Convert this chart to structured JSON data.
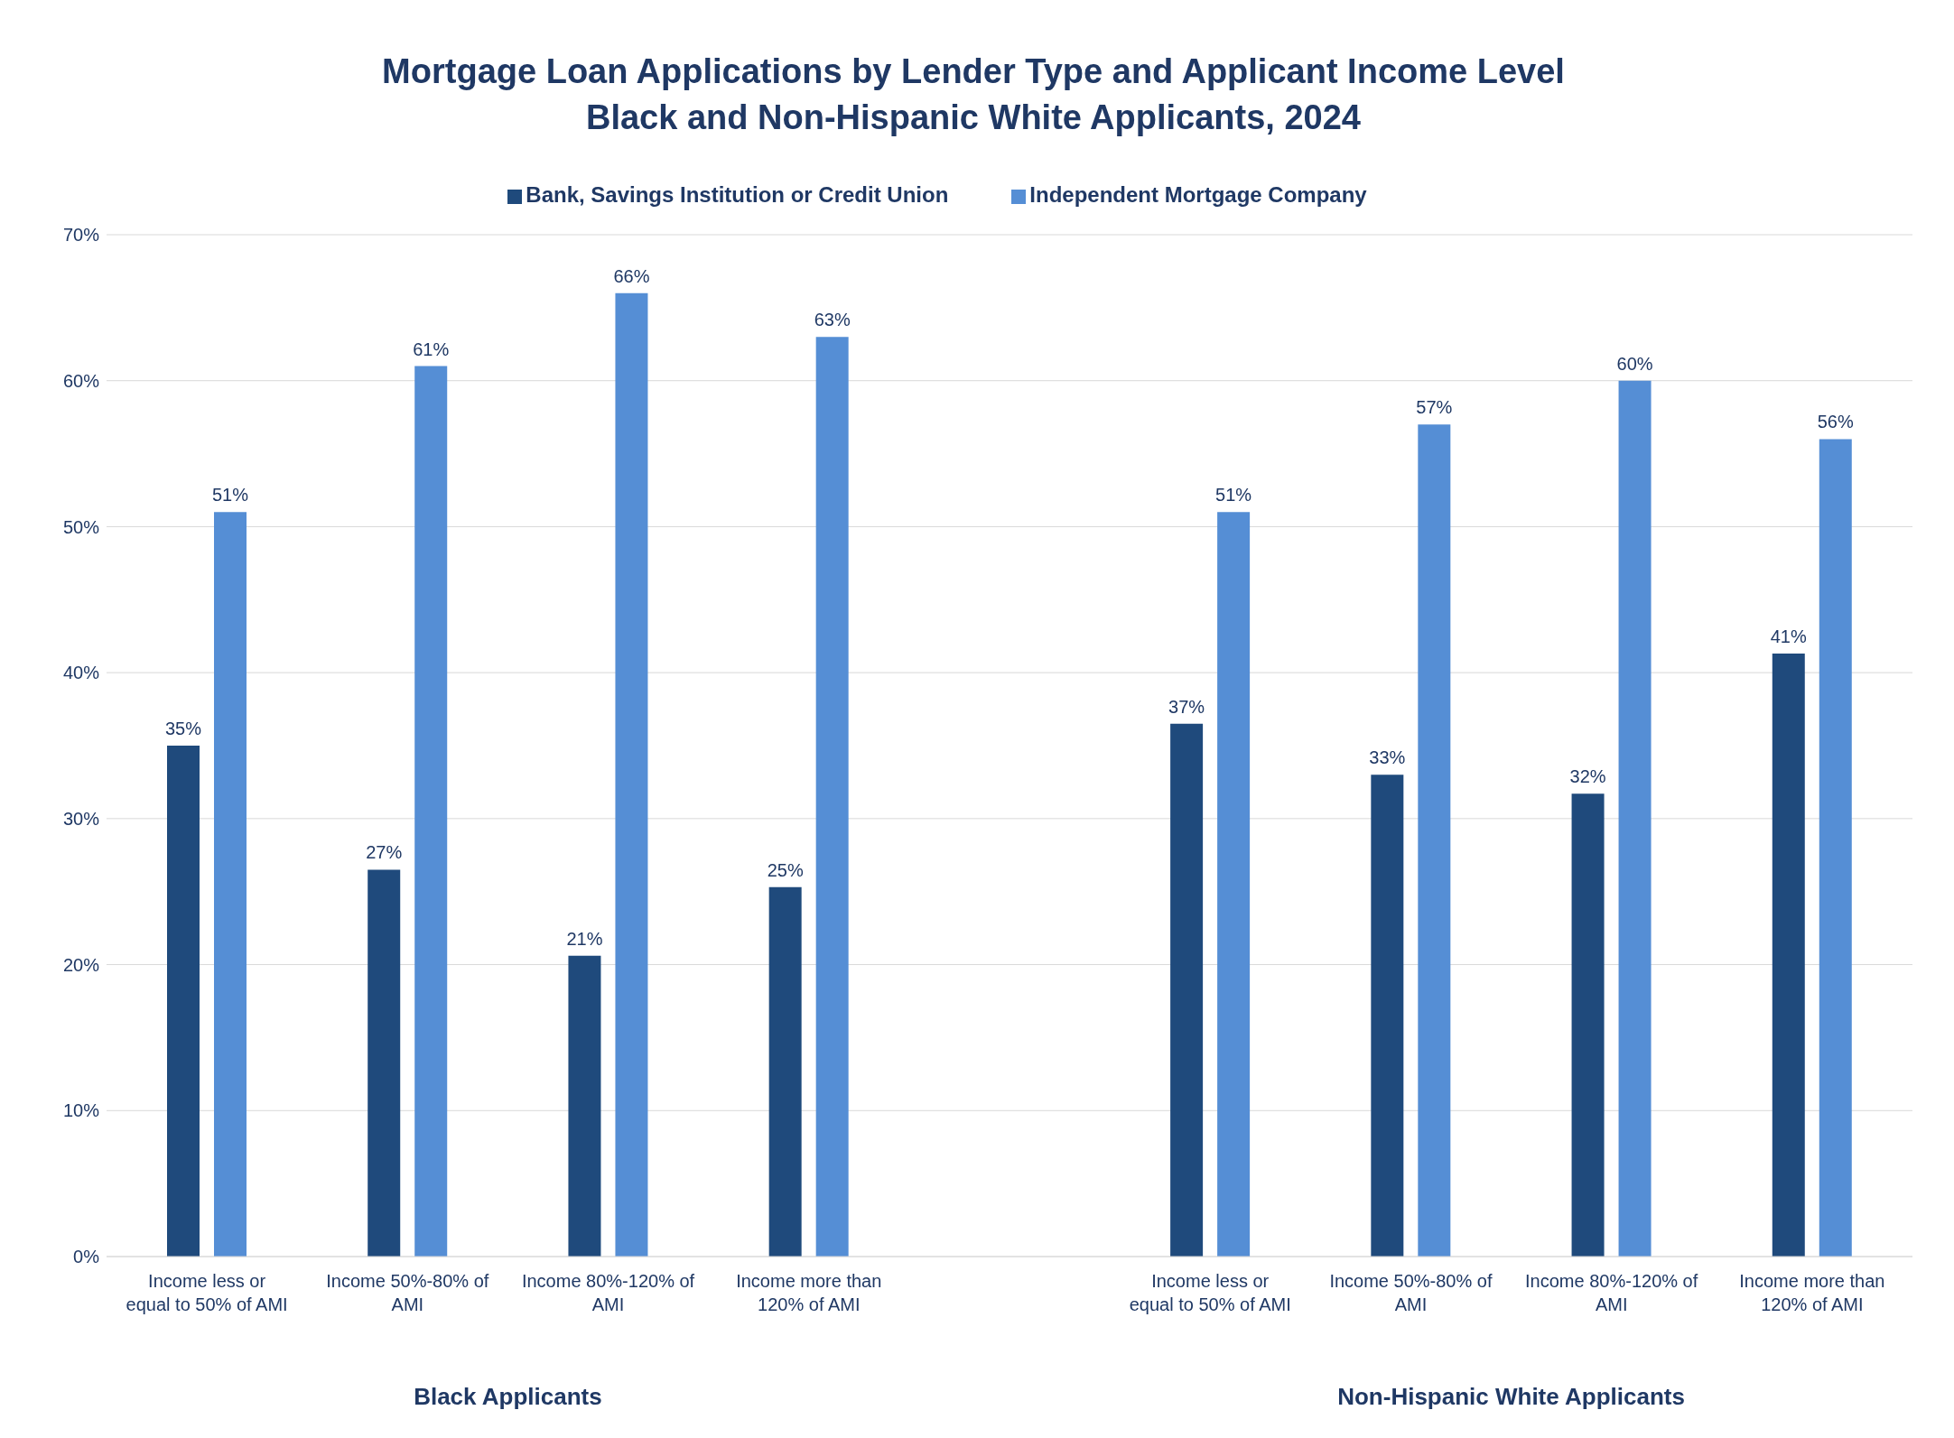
{
  "chart_data": {
    "type": "bar",
    "title": "Mortgage Loan Applications by Lender Type and Applicant Income Level",
    "subtitle": "Black and Non-Hispanic White Applicants, 2024",
    "categories": [
      "Income less or equal to 50% of AMI",
      "Income 50%-80% of AMI",
      "Income 80%-120% of AMI",
      "Income more than 120% of AMI",
      null,
      "Income less or equal to 50% of AMI",
      "Income 50%-80% of AMI",
      "Income 80%-120% of AMI",
      "Income more than 120% of AMI"
    ],
    "series": [
      {
        "name": "Bank, Savings Institution or Credit Union",
        "color": "#1f4a7c",
        "values": [
          35,
          26.5,
          20.6,
          25.3,
          null,
          36.5,
          33,
          31.7,
          41.3
        ],
        "value_labels": [
          "35%",
          "27%",
          "21%",
          "25%",
          null,
          "37%",
          "33%",
          "32%",
          "41%"
        ]
      },
      {
        "name": "Independent Mortgage Company",
        "color": "#558ed5",
        "values": [
          51,
          61,
          66,
          63,
          null,
          51,
          57,
          60,
          56
        ],
        "value_labels": [
          "51%",
          "61%",
          "66%",
          "63%",
          null,
          "51%",
          "57%",
          "60%",
          "56%"
        ]
      }
    ],
    "ylim": [
      0,
      70
    ],
    "yticks": [
      {
        "value": 0,
        "label": "0%"
      },
      {
        "value": 10,
        "label": "10%"
      },
      {
        "value": 20,
        "label": "20%"
      },
      {
        "value": 30,
        "label": "30%"
      },
      {
        "value": 40,
        "label": "40%"
      },
      {
        "value": 50,
        "label": "50%"
      },
      {
        "value": 60,
        "label": "60%"
      },
      {
        "value": 70,
        "label": "70%"
      }
    ],
    "grid": "y",
    "legend": "top",
    "annotations": [
      "Black Applicants",
      "Non-Hispanic White Applicants"
    ]
  }
}
